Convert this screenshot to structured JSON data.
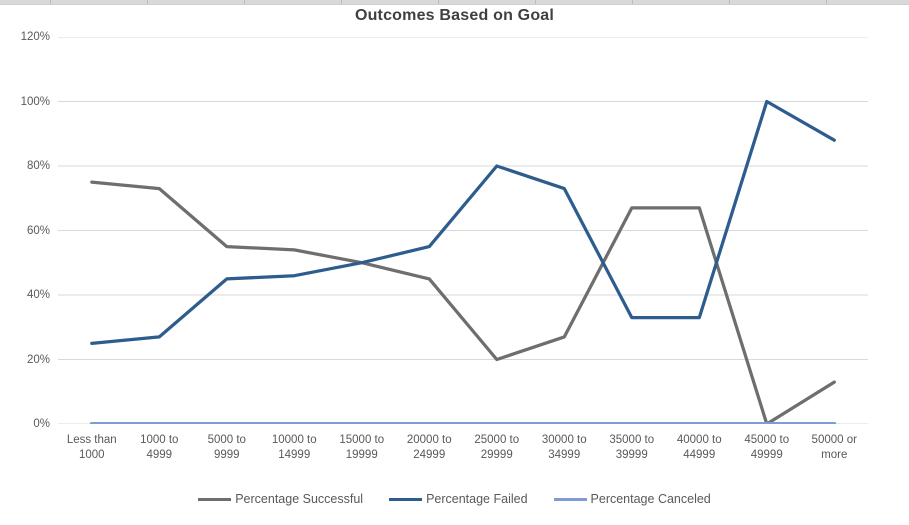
{
  "chart_data": {
    "type": "line",
    "title": "Outcomes Based on Goal",
    "categories": [
      "Less than 1000",
      "1000 to 4999",
      "5000 to 9999",
      "10000 to 14999",
      "15000 to 19999",
      "20000 to 24999",
      "25000 to 29999",
      "30000 to 34999",
      "35000 to 39999",
      "40000 to 44999",
      "45000 to 49999",
      "50000 or more"
    ],
    "series": [
      {
        "name": "Percentage Successful",
        "color": "#6e6e6e",
        "values": [
          75,
          73,
          55,
          54,
          50,
          45,
          20,
          27,
          67,
          67,
          0,
          13
        ]
      },
      {
        "name": "Percentage Failed",
        "color": "#2d5d8e",
        "values": [
          25,
          27,
          45,
          46,
          50,
          55,
          80,
          73,
          33,
          33,
          100,
          88
        ]
      },
      {
        "name": "Percentage Canceled",
        "color": "#7d9bd4",
        "values": [
          0,
          0,
          0,
          0,
          0,
          0,
          0,
          0,
          0,
          0,
          0,
          0
        ]
      }
    ],
    "yticks": [
      "0%",
      "20%",
      "40%",
      "60%",
      "80%",
      "100%",
      "120%"
    ],
    "ytick_values": [
      0,
      20,
      40,
      60,
      80,
      100,
      120
    ],
    "ylim": [
      0,
      120
    ],
    "grid": "horizontal",
    "legend_position": "bottom"
  },
  "colors": {
    "gridline": "#d9d9d9",
    "axis_text": "#595959",
    "title_text": "#404040",
    "header_strip": "#d9d9d9"
  }
}
